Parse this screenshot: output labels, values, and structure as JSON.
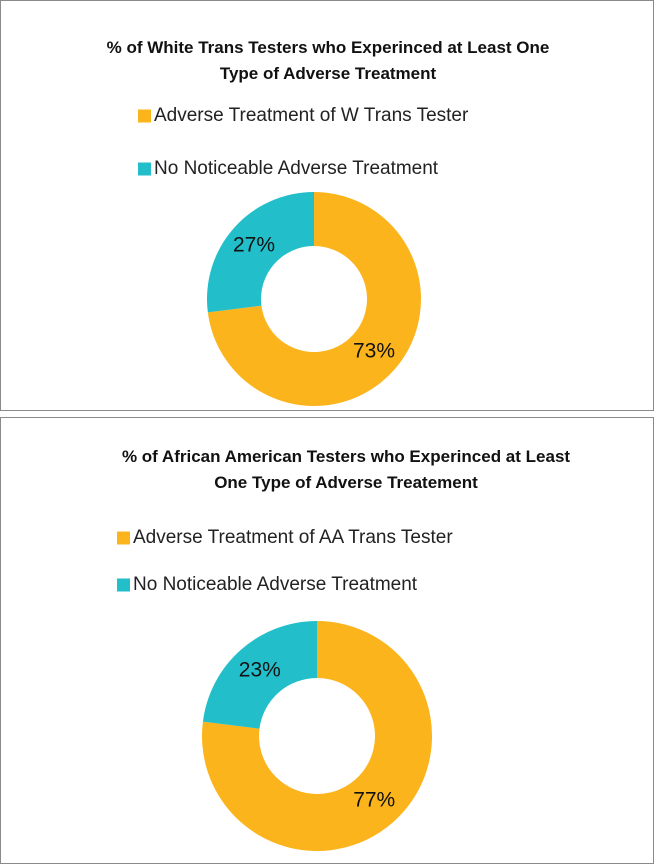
{
  "chart_data": [
    {
      "type": "pie",
      "donut": true,
      "title": "% of White Trans Testers who Experinced at Least One Type of Adverse Treatment",
      "categories": [
        "Adverse Treatment of W Trans Tester",
        "No Noticeable Adverse Treatment"
      ],
      "values": [
        73,
        27
      ],
      "value_labels": [
        "73%",
        "27%"
      ],
      "colors": [
        "#fbb41c",
        "#22bfcb"
      ]
    },
    {
      "type": "pie",
      "donut": true,
      "title": "% of African American Testers who Experinced at Least One Type of Adverse Treatement",
      "categories": [
        "Adverse Treatment of AA Trans Tester",
        "No Noticeable Adverse Treatment"
      ],
      "values": [
        77,
        23
      ],
      "value_labels": [
        "77%",
        "23%"
      ],
      "colors": [
        "#fbb41c",
        "#22bfcb"
      ]
    }
  ]
}
